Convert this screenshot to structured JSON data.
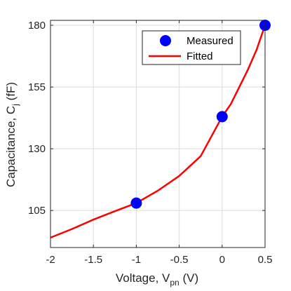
{
  "chart_data": {
    "type": "scatter",
    "title": "",
    "xlabel_main": "Voltage, V",
    "xlabel_sub": "pn",
    "xlabel_unit": " (V)",
    "ylabel_main": "Capacitance, C",
    "ylabel_sub": "j",
    "ylabel_unit": " (fF)",
    "xlim": [
      -2,
      0.5
    ],
    "ylim": [
      90,
      182
    ],
    "xticks": [
      -2,
      -1.5,
      -1,
      -0.5,
      0,
      0.5
    ],
    "xtick_labels": [
      "-2",
      "-1.5",
      "-1",
      "-0.5",
      "0",
      "0.5"
    ],
    "yticks": [
      105,
      130,
      155,
      180
    ],
    "ytick_labels": [
      "105",
      "130",
      "155",
      "180"
    ],
    "grid": true,
    "legend_position": "top-right",
    "series": [
      {
        "name": "Measured",
        "kind": "markers",
        "color": "#0000ff",
        "x": [
          -1,
          0,
          0.5
        ],
        "y": [
          108,
          143,
          180
        ]
      },
      {
        "name": "Fitted",
        "kind": "line",
        "color": "#ff0000",
        "x": [
          -2,
          -1.75,
          -1.5,
          -1.25,
          -1,
          -0.75,
          -0.5,
          -0.25,
          0,
          0.1,
          0.2,
          0.3,
          0.4,
          0.5
        ],
        "y": [
          94,
          97.5,
          101.3,
          104.7,
          108,
          113,
          119,
          127,
          143,
          148,
          155,
          162,
          170,
          180
        ]
      }
    ]
  }
}
